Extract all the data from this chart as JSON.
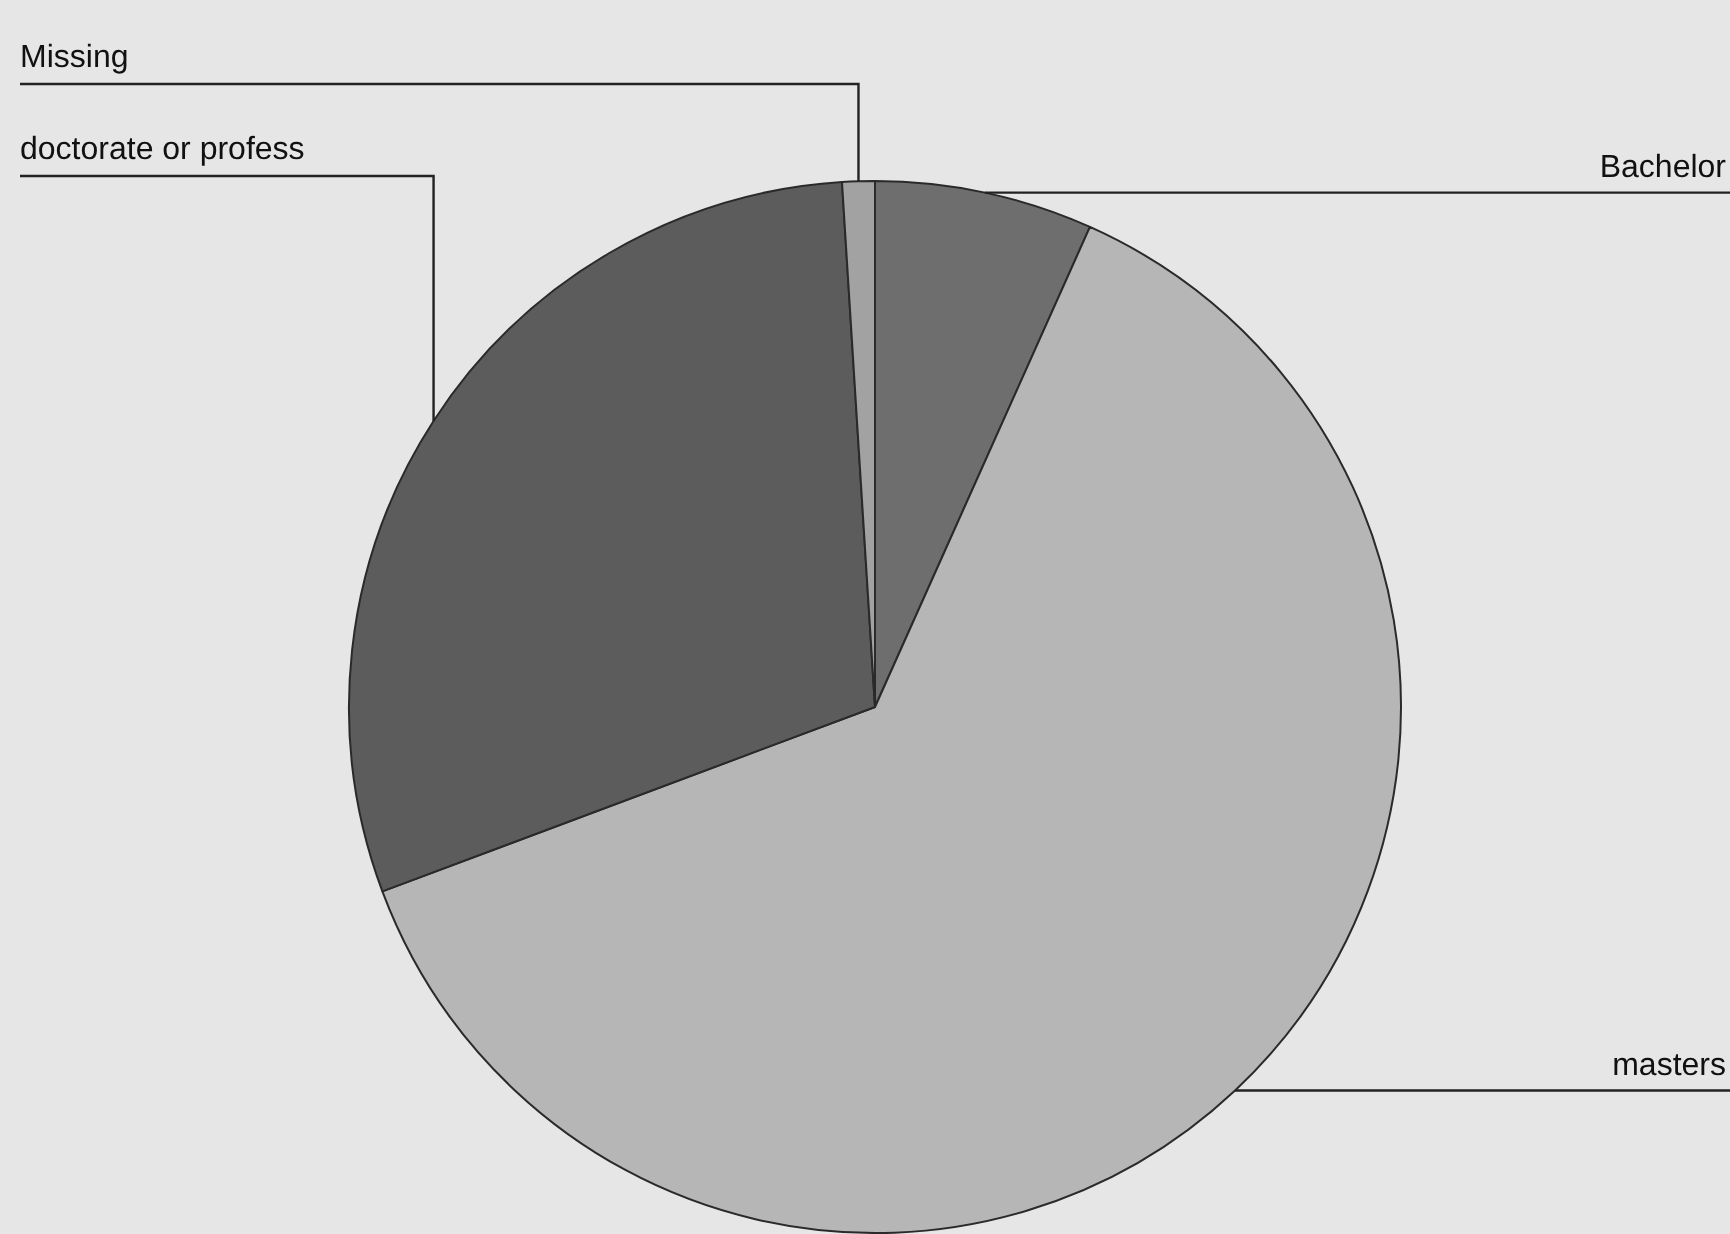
{
  "chart_data": {
    "type": "pie",
    "categories": [
      "Bachelor",
      "masters",
      "doctorate or profess",
      "Missing"
    ],
    "values": [
      6.7,
      62.6,
      29.7,
      1.0
    ],
    "colors": [
      "#6e6e6e",
      "#b6b6b6",
      "#5c5c5c",
      "#a2a2a2"
    ],
    "legend": false
  }
}
